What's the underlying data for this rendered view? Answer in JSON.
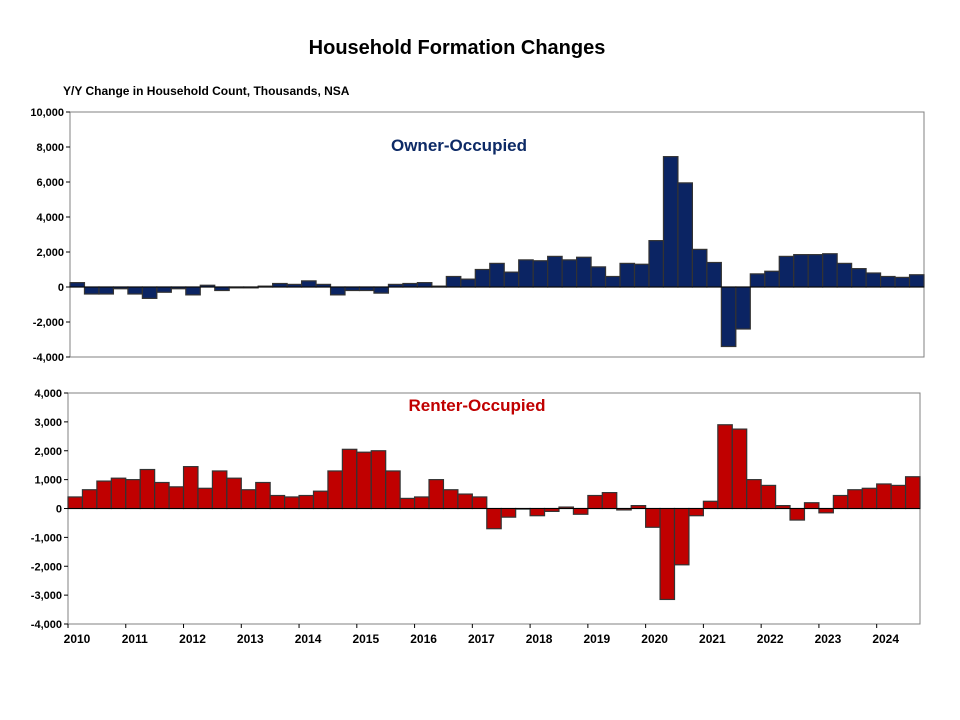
{
  "chart_data": {
    "type": "bar",
    "title": "Household Formation Changes",
    "subtitle": "Y/Y Change in Household Count, Thousands,  NSA",
    "x_tick_labels": [
      "2010",
      "2011",
      "2012",
      "2013",
      "2014",
      "2015",
      "2016",
      "2017",
      "2018",
      "2019",
      "2020",
      "2021",
      "2022",
      "2023",
      "2024"
    ],
    "grid": false,
    "panels": [
      {
        "name": "Owner-Occupied",
        "color": "#0b2463",
        "label_color": "#0d2a66",
        "ylim": [
          -4000,
          10000
        ],
        "yticks": [
          -4000,
          -2000,
          0,
          2000,
          4000,
          6000,
          8000,
          10000
        ],
        "ytick_labels": [
          "-4,000",
          "-2,000",
          "0",
          "2,000",
          "4,000",
          "6,000",
          "8,000",
          "10,000"
        ],
        "values": [
          250,
          -400,
          -400,
          -100,
          -400,
          -650,
          -300,
          -100,
          -450,
          100,
          -200,
          -50,
          -50,
          50,
          200,
          150,
          350,
          150,
          -450,
          -200,
          -200,
          -350,
          150,
          200,
          250,
          50,
          600,
          450,
          1000,
          1350,
          850,
          1550,
          1500,
          1750,
          1550,
          1700,
          1150,
          600,
          1350,
          1300,
          2650,
          7450,
          5950,
          2150,
          1400,
          -3400,
          -2400,
          750,
          900,
          1750,
          1850,
          1850,
          1900,
          1350,
          1050,
          800,
          600,
          550,
          700
        ]
      },
      {
        "name": "Renter-Occupied",
        "color": "#c00000",
        "label_color": "#c00000",
        "ylim": [
          -4000,
          4000
        ],
        "yticks": [
          -4000,
          -3000,
          -2000,
          -1000,
          0,
          1000,
          2000,
          3000,
          4000
        ],
        "ytick_labels": [
          "-4,000",
          "-3,000",
          "-2,000",
          "-1,000",
          "0",
          "1,000",
          "2,000",
          "3,000",
          "4,000"
        ],
        "values": [
          400,
          650,
          950,
          1050,
          1000,
          1350,
          900,
          750,
          1450,
          700,
          1300,
          1050,
          650,
          900,
          450,
          400,
          450,
          600,
          1300,
          2050,
          1950,
          2000,
          1300,
          350,
          400,
          1000,
          650,
          500,
          400,
          -700,
          -300,
          0,
          -250,
          -100,
          50,
          -200,
          450,
          550,
          -50,
          100,
          -650,
          -3150,
          -1950,
          -250,
          250,
          2900,
          2750,
          1000,
          800,
          100,
          -400,
          200,
          -150,
          450,
          650,
          700,
          850,
          800,
          1100
        ]
      }
    ]
  }
}
